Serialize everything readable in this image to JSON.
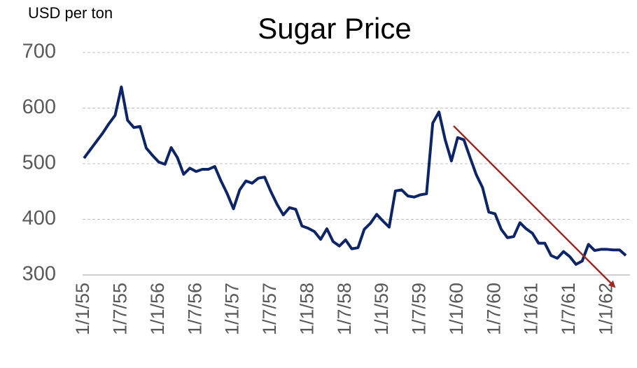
{
  "chart_data": {
    "type": "line",
    "title": "Sugar Price",
    "y_label": "USD per ton",
    "categories": [
      "1/1/55",
      null,
      null,
      null,
      null,
      null,
      "1/7/55",
      null,
      null,
      null,
      null,
      null,
      "1/1/56",
      null,
      null,
      null,
      null,
      null,
      "1/7/56",
      null,
      null,
      null,
      null,
      null,
      "1/1/57",
      null,
      null,
      null,
      null,
      null,
      "1/7/57",
      null,
      null,
      null,
      null,
      null,
      "1/1/58",
      null,
      null,
      null,
      null,
      null,
      "1/7/58",
      null,
      null,
      null,
      null,
      null,
      "1/1/59",
      null,
      null,
      null,
      null,
      null,
      "1/7/59",
      null,
      null,
      null,
      null,
      null,
      "1/1/60",
      null,
      null,
      null,
      null,
      null,
      "1/7/60",
      null,
      null,
      null,
      null,
      null,
      "1/1/61",
      null,
      null,
      null,
      null,
      null,
      "1/7/61",
      null,
      null,
      null,
      null,
      null,
      "1/1/62",
      null,
      null,
      null
    ],
    "values": [
      510,
      525,
      540,
      555,
      572,
      587,
      638,
      578,
      565,
      567,
      528,
      515,
      503,
      499,
      529,
      511,
      481,
      492,
      486,
      490,
      490,
      495,
      469,
      446,
      419,
      453,
      469,
      465,
      474,
      476,
      450,
      427,
      408,
      421,
      418,
      388,
      384,
      378,
      364,
      383,
      360,
      352,
      363,
      347,
      349,
      382,
      393,
      409,
      397,
      386,
      451,
      453,
      442,
      440,
      444,
      446,
      573,
      593,
      543,
      505,
      547,
      543,
      511,
      480,
      457,
      413,
      410,
      382,
      367,
      369,
      394,
      383,
      375,
      357,
      357,
      335,
      330,
      342,
      333,
      319,
      325,
      355,
      344,
      346,
      346,
      345,
      345,
      335
    ],
    "color": "#0d2466",
    "ylim": [
      300,
      700
    ],
    "yticks": [
      300,
      400,
      500,
      600,
      700
    ],
    "grid": true
  }
}
